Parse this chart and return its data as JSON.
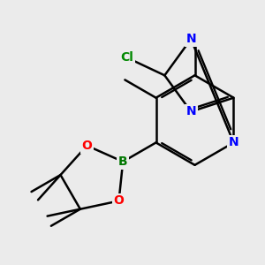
{
  "bg_color": "#ebebeb",
  "atom_colors": {
    "N": "#0000ff",
    "O": "#ff0000",
    "B": "#007700",
    "Cl": "#008800"
  },
  "bond_color": "#000000",
  "bond_lw": 1.8
}
